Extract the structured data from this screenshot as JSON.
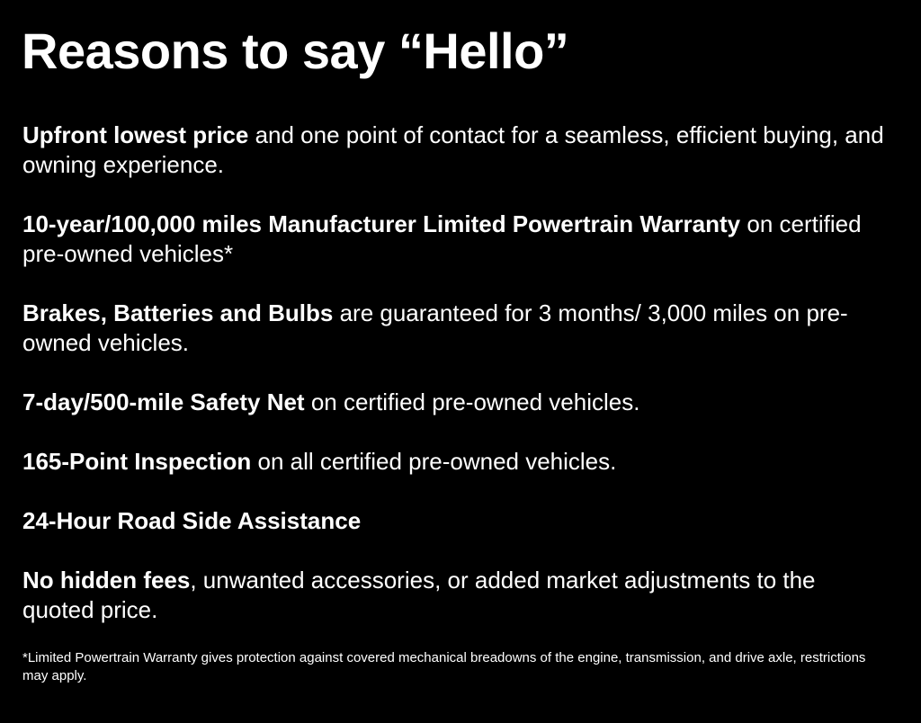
{
  "title": "Reasons to say “Hello”",
  "items": [
    {
      "bold": "Upfront lowest price",
      "text": " and one point of contact for a seamless, efficient buying, and owning experience."
    },
    {
      "bold": "10-year/100,000 miles Manufacturer Limited Powertrain Warranty",
      "text": " on certified pre-owned vehicles*"
    },
    {
      "bold": "Brakes, Batteries and Bulbs",
      "text": " are guaranteed for 3 months/ 3,000 miles on pre-owned vehicles."
    },
    {
      "bold": "7-day/500-mile Safety Net",
      "text": " on certified pre-owned vehicles."
    },
    {
      "bold": "165-Point Inspection",
      "text": " on all certified pre-owned vehicles."
    },
    {
      "bold": "24-Hour Road Side Assistance",
      "text": ""
    },
    {
      "bold": "No hidden fees",
      "text": ", unwanted accessories, or added market adjustments to the quoted price."
    }
  ],
  "footnote": "*Limited Powertrain Warranty gives protection against covered mechanical breadowns of the engine, transmission, and drive axle, restrictions may apply."
}
